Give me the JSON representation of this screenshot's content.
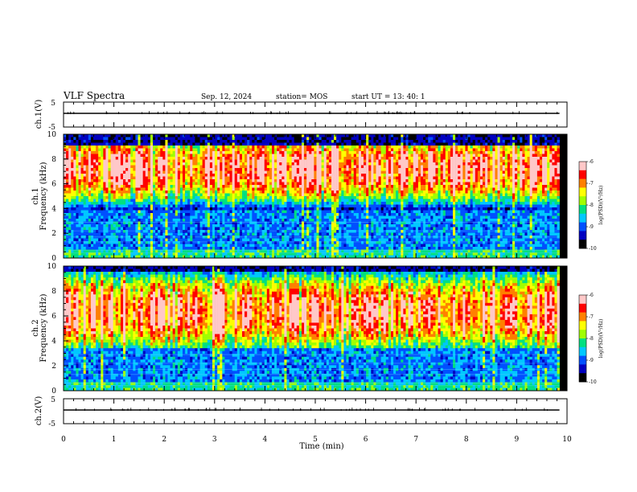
{
  "header": {
    "title": "VLF Spectra",
    "date": "Sep. 12, 2024",
    "station": "station= MOS",
    "start": "start  UT  =   13: 40: 1"
  },
  "colors": {
    "background": "#ffffff",
    "axis": "#000000",
    "colormap": [
      "#000000",
      "#0000c0",
      "#0050ff",
      "#00c8ff",
      "#00e080",
      "#a0ff00",
      "#ffff00",
      "#ff8000",
      "#ff0000",
      "#ffc8c8"
    ]
  },
  "chart_data": [
    {
      "type": "line",
      "panel": "ch1-voltage",
      "ylabel": "ch.1(V)",
      "ylim": [
        -5,
        5
      ],
      "yticks": [
        5,
        -5
      ],
      "xlim": [
        0,
        10
      ],
      "series": [
        {
          "x": [
            0,
            9.85
          ],
          "y": [
            0,
            0
          ]
        }
      ]
    },
    {
      "type": "heatmap",
      "panel": "ch1-spectrogram",
      "ylabel": "ch.1\nFrequency (kHz)",
      "xlim": [
        0,
        10
      ],
      "ylim": [
        0,
        10
      ],
      "yticks": [
        0,
        2,
        4,
        6,
        8,
        10
      ],
      "data_x_max": 9.85,
      "band_kHz": [
        3.8,
        9.2
      ],
      "peak_kHz": 7.2,
      "peak_level": -7,
      "colorbar": {
        "label": "log(PSD)(V²/Hz)",
        "range": [
          -10,
          -6
        ],
        "ticks": [
          -6,
          -7,
          -8,
          -9,
          -10
        ]
      }
    },
    {
      "type": "heatmap",
      "panel": "ch2-spectrogram",
      "ylabel": "ch.2\nFrequency (kHz)",
      "xlim": [
        0,
        10
      ],
      "ylim": [
        0,
        10
      ],
      "yticks": [
        0,
        2,
        4,
        6,
        8,
        10
      ],
      "data_x_max": 9.85,
      "band_kHz": [
        3.5,
        9.6
      ],
      "peak_kHz": 6.3,
      "peak_level": -7,
      "colorbar": {
        "label": "log(PSD)(V²/Hz)",
        "range": [
          -10,
          -6
        ],
        "ticks": [
          -6,
          -7,
          -8,
          -9,
          -10
        ]
      }
    },
    {
      "type": "line",
      "panel": "ch2-voltage",
      "ylabel": "ch.2(V)",
      "ylim": [
        -5,
        5
      ],
      "yticks": [
        5,
        -5
      ],
      "xlim": [
        0,
        10
      ],
      "series": [
        {
          "x": [
            0,
            9.85
          ],
          "y": [
            0,
            0
          ]
        }
      ]
    }
  ],
  "xaxis": {
    "label": "Time (min)",
    "ticks": [
      0,
      1,
      2,
      3,
      4,
      5,
      6,
      7,
      8,
      9,
      10
    ]
  }
}
